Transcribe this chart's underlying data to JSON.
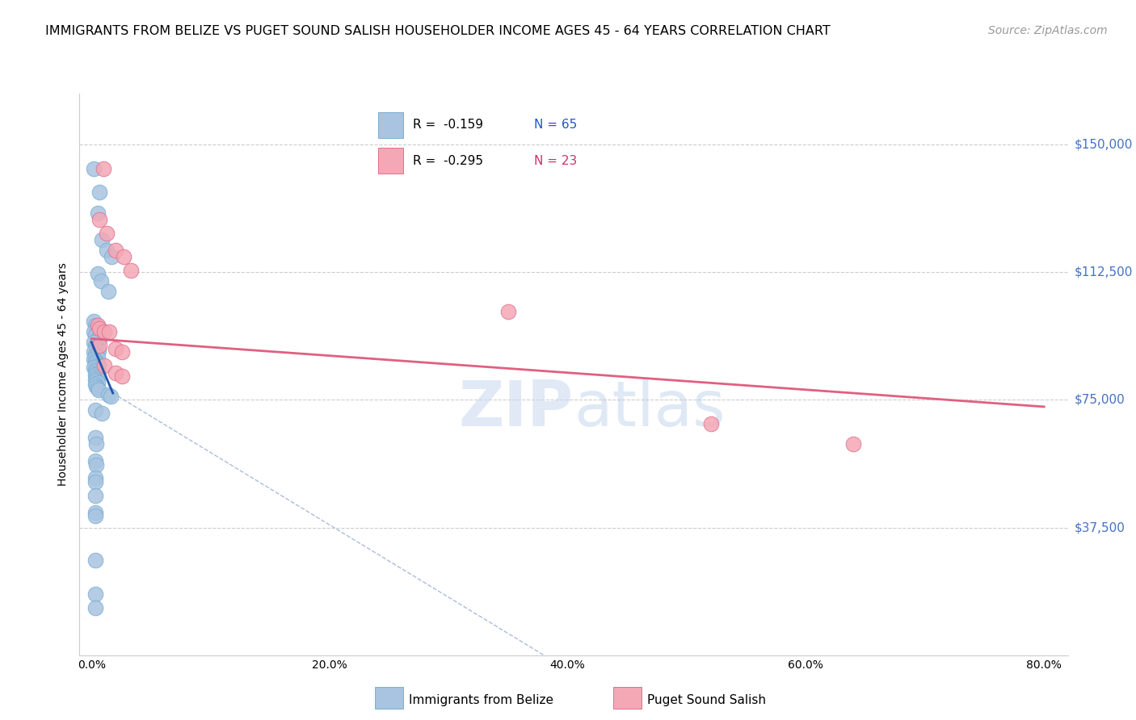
{
  "title": "IMMIGRANTS FROM BELIZE VS PUGET SOUND SALISH HOUSEHOLDER INCOME AGES 45 - 64 YEARS CORRELATION CHART",
  "source": "Source: ZipAtlas.com",
  "ylabel": "Householder Income Ages 45 - 64 years",
  "x_ticks": [
    "0.0%",
    "20.0%",
    "40.0%",
    "60.0%",
    "80.0%"
  ],
  "x_tick_vals": [
    0.0,
    0.2,
    0.4,
    0.6,
    0.8
  ],
  "y_tick_labels": [
    "$37,500",
    "$75,000",
    "$112,500",
    "$150,000"
  ],
  "y_tick_vals": [
    37500,
    75000,
    112500,
    150000
  ],
  "xlim": [
    -0.01,
    0.82
  ],
  "ylim": [
    0,
    165000
  ],
  "blue_scatter": [
    [
      0.002,
      143000
    ],
    [
      0.007,
      136000
    ],
    [
      0.005,
      130000
    ],
    [
      0.009,
      122000
    ],
    [
      0.013,
      119000
    ],
    [
      0.017,
      117000
    ],
    [
      0.005,
      112000
    ],
    [
      0.008,
      110000
    ],
    [
      0.014,
      107000
    ],
    [
      0.002,
      98000
    ],
    [
      0.003,
      97000
    ],
    [
      0.004,
      96000
    ],
    [
      0.006,
      96000
    ],
    [
      0.002,
      95000
    ],
    [
      0.003,
      94000
    ],
    [
      0.005,
      93000
    ],
    [
      0.007,
      93000
    ],
    [
      0.002,
      92000
    ],
    [
      0.003,
      91000
    ],
    [
      0.004,
      90500
    ],
    [
      0.005,
      90000
    ],
    [
      0.006,
      89500
    ],
    [
      0.002,
      89000
    ],
    [
      0.003,
      88500
    ],
    [
      0.004,
      88000
    ],
    [
      0.005,
      87500
    ],
    [
      0.002,
      87000
    ],
    [
      0.003,
      86500
    ],
    [
      0.004,
      86000
    ],
    [
      0.005,
      85500
    ],
    [
      0.006,
      85000
    ],
    [
      0.002,
      84500
    ],
    [
      0.003,
      84000
    ],
    [
      0.004,
      83500
    ],
    [
      0.005,
      83000
    ],
    [
      0.003,
      82500
    ],
    [
      0.004,
      82000
    ],
    [
      0.005,
      81500
    ],
    [
      0.003,
      81000
    ],
    [
      0.004,
      80500
    ],
    [
      0.005,
      80000
    ],
    [
      0.003,
      79500
    ],
    [
      0.004,
      79000
    ],
    [
      0.005,
      78500
    ],
    [
      0.006,
      78000
    ],
    [
      0.014,
      76500
    ],
    [
      0.016,
      76000
    ],
    [
      0.003,
      72000
    ],
    [
      0.009,
      71000
    ],
    [
      0.003,
      64000
    ],
    [
      0.004,
      62000
    ],
    [
      0.003,
      57000
    ],
    [
      0.004,
      56000
    ],
    [
      0.003,
      52000
    ],
    [
      0.003,
      51000
    ],
    [
      0.003,
      47000
    ],
    [
      0.003,
      42000
    ],
    [
      0.003,
      41000
    ],
    [
      0.003,
      28000
    ],
    [
      0.003,
      18000
    ],
    [
      0.003,
      14000
    ]
  ],
  "pink_scatter": [
    [
      0.01,
      143000
    ],
    [
      0.007,
      128000
    ],
    [
      0.013,
      124000
    ],
    [
      0.02,
      119000
    ],
    [
      0.027,
      117000
    ],
    [
      0.033,
      113000
    ],
    [
      0.005,
      97000
    ],
    [
      0.007,
      96000
    ],
    [
      0.011,
      95000
    ],
    [
      0.015,
      95000
    ],
    [
      0.007,
      91000
    ],
    [
      0.02,
      90000
    ],
    [
      0.026,
      89000
    ],
    [
      0.011,
      85000
    ],
    [
      0.02,
      83000
    ],
    [
      0.026,
      82000
    ],
    [
      0.35,
      101000
    ],
    [
      0.52,
      68000
    ],
    [
      0.64,
      62000
    ]
  ],
  "blue_trendline_solid": {
    "x": [
      0.0,
      0.018
    ],
    "y": [
      92000,
      77000
    ]
  },
  "blue_trendline_dashed": {
    "x": [
      0.018,
      0.38
    ],
    "y": [
      77000,
      0
    ]
  },
  "pink_trendline": {
    "x": [
      0.0,
      0.8
    ],
    "y": [
      93000,
      73000
    ]
  },
  "title_fontsize": 11.5,
  "axis_label_fontsize": 10,
  "tick_fontsize": 10,
  "source_fontsize": 10
}
